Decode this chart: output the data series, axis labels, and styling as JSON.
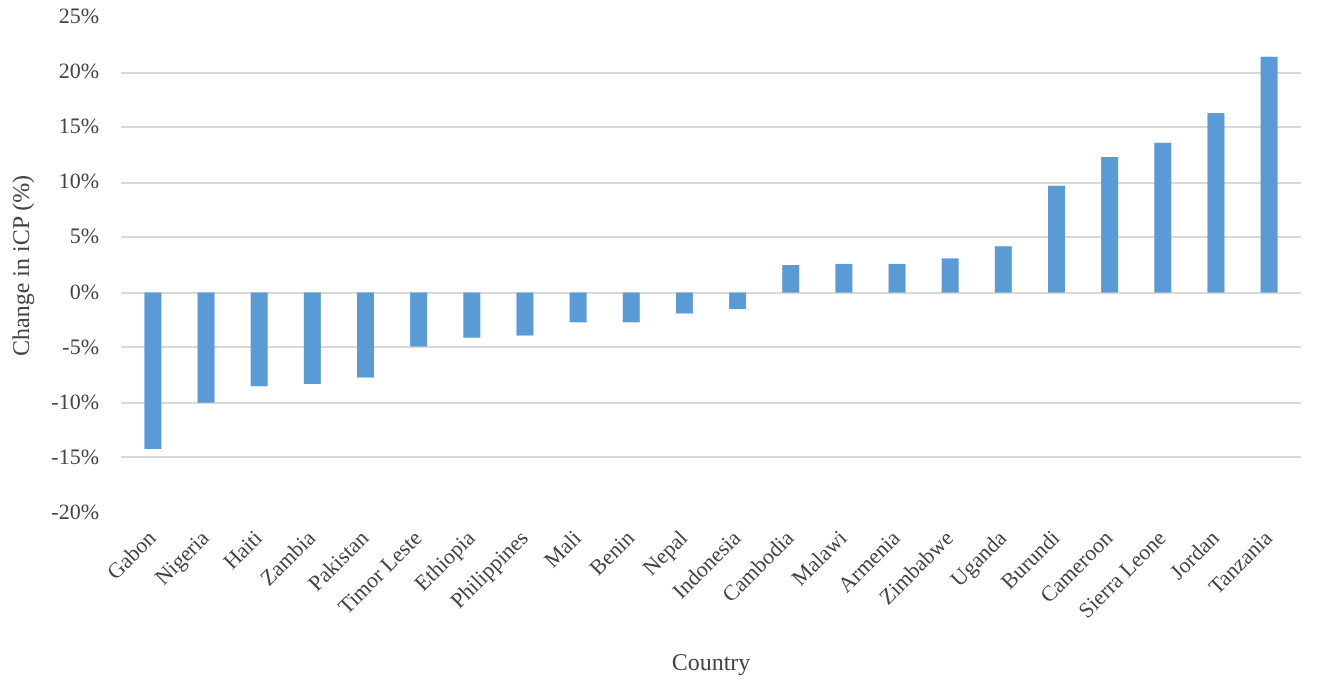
{
  "chart_data": {
    "type": "bar",
    "xlabel": "Country",
    "ylabel": "Change in iCP (%)",
    "categories": [
      "Gabon",
      "Nigeria",
      "Haiti",
      "Zambia",
      "Pakistan",
      "Timor Leste",
      "Ethiopia",
      "Philippines",
      "Mali",
      "Benin",
      "Nepal",
      "Indonesia",
      "Cambodia",
      "Malawi",
      "Armenia",
      "Zimbabwe",
      "Uganda",
      "Burundi",
      "Cameroon",
      "Sierra Leone",
      "Jordan",
      "Tanzania"
    ],
    "values": [
      -14.2,
      -10,
      -8.5,
      -8.3,
      -7.7,
      -4.9,
      -4.1,
      -3.9,
      -2.7,
      -2.7,
      -1.9,
      -1.5,
      2.5,
      2.6,
      2.6,
      3.1,
      4.2,
      9.7,
      12.3,
      13.6,
      16.3,
      21.4
    ],
    "color": "#5b9bd5",
    "ylim": [
      -20,
      25
    ],
    "yticks": [
      {
        "value": -20,
        "label": "-20%"
      },
      {
        "value": -15,
        "label": "-15%"
      },
      {
        "value": -10,
        "label": "-10%"
      },
      {
        "value": -5,
        "label": "-5%"
      },
      {
        "value": 0,
        "label": "0%"
      },
      {
        "value": 5,
        "label": "5%"
      },
      {
        "value": 10,
        "label": "10%"
      },
      {
        "value": 15,
        "label": "15%"
      },
      {
        "value": 20,
        "label": "20%"
      },
      {
        "value": 25,
        "label": "25%"
      }
    ],
    "grid": "y"
  }
}
